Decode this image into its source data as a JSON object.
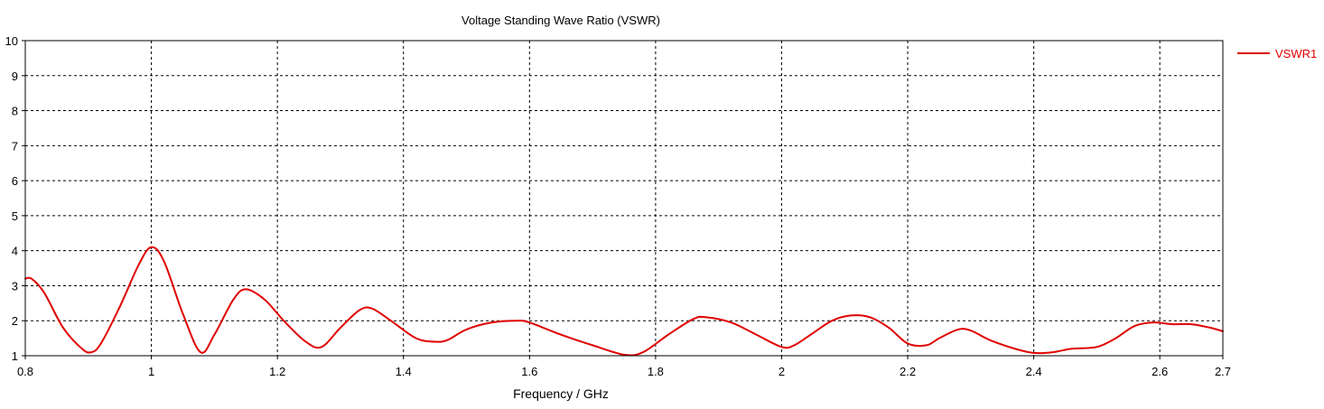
{
  "chart_data": {
    "type": "line",
    "title": "Voltage Standing Wave Ratio (VSWR)",
    "xlabel": "Frequency / GHz",
    "ylabel": "",
    "xlim": [
      0.8,
      2.7
    ],
    "ylim": [
      1,
      10
    ],
    "x_ticks": [
      "0.8",
      "1",
      "1.2",
      "1.4",
      "1.6",
      "1.8",
      "2",
      "2.2",
      "2.4",
      "2.6",
      "2.7"
    ],
    "y_ticks": [
      "1",
      "2",
      "3",
      "4",
      "5",
      "6",
      "7",
      "8",
      "9",
      "10"
    ],
    "grid": true,
    "legend_position": "right",
    "series": [
      {
        "name": "VSWR1",
        "color": "#e00000",
        "x": [
          0.8,
          0.81,
          0.83,
          0.86,
          0.89,
          0.905,
          0.92,
          0.95,
          0.98,
          1.0,
          1.02,
          1.05,
          1.078,
          1.1,
          1.13,
          1.15,
          1.18,
          1.21,
          1.245,
          1.27,
          1.3,
          1.33,
          1.35,
          1.38,
          1.42,
          1.45,
          1.47,
          1.5,
          1.54,
          1.58,
          1.6,
          1.65,
          1.7,
          1.75,
          1.78,
          1.82,
          1.86,
          1.88,
          1.92,
          1.96,
          2.0,
          2.02,
          2.05,
          2.08,
          2.11,
          2.14,
          2.17,
          2.2,
          2.23,
          2.25,
          2.28,
          2.3,
          2.33,
          2.37,
          2.4,
          2.43,
          2.46,
          2.5,
          2.53,
          2.56,
          2.59,
          2.62,
          2.65,
          2.68,
          2.7
        ],
        "y": [
          3.2,
          3.2,
          2.8,
          1.8,
          1.2,
          1.1,
          1.35,
          2.4,
          3.6,
          4.1,
          3.7,
          2.2,
          1.1,
          1.6,
          2.6,
          2.9,
          2.6,
          2.0,
          1.4,
          1.25,
          1.8,
          2.3,
          2.35,
          2.0,
          1.5,
          1.4,
          1.45,
          1.75,
          1.95,
          2.0,
          1.95,
          1.6,
          1.3,
          1.03,
          1.1,
          1.6,
          2.05,
          2.1,
          1.95,
          1.6,
          1.25,
          1.3,
          1.65,
          2.0,
          2.15,
          2.1,
          1.8,
          1.35,
          1.3,
          1.5,
          1.75,
          1.72,
          1.45,
          1.2,
          1.08,
          1.1,
          1.2,
          1.25,
          1.5,
          1.85,
          1.95,
          1.9,
          1.9,
          1.8,
          1.7
        ]
      }
    ]
  }
}
